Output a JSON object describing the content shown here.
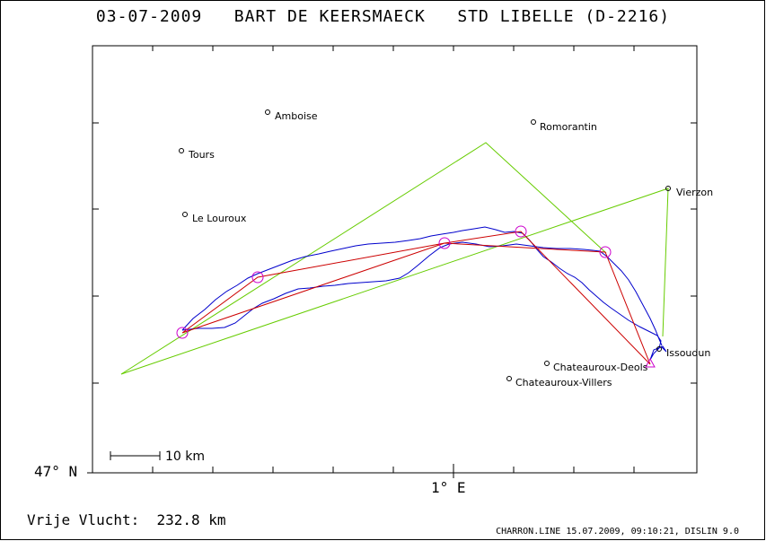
{
  "title": "03-07-2009   BART DE KEERSMAECK   STD LIBELLE (D-2216)",
  "axis": {
    "lat_label": "47° N",
    "lon_label": "1° E"
  },
  "scale_bar_label": "10 km",
  "distance": {
    "label": "Vrije Vlucht:",
    "value": "232.8 km"
  },
  "footer": "CHARRON.LINE 15.07.2009, 09:10:21, DISLIN 9.0",
  "colors": {
    "track": "#0000cc",
    "task": "#cc0000",
    "triangle": "#66cc00",
    "turnpoint": "#cc00cc"
  },
  "places": [
    {
      "name": "Amboise"
    },
    {
      "name": "Tours"
    },
    {
      "name": "Le Louroux"
    },
    {
      "name": "Romorantin"
    },
    {
      "name": "Vierzon"
    },
    {
      "name": "Issoudun"
    },
    {
      "name": "Chateauroux-Deols"
    },
    {
      "name": "Chateauroux-Villers"
    }
  ]
}
